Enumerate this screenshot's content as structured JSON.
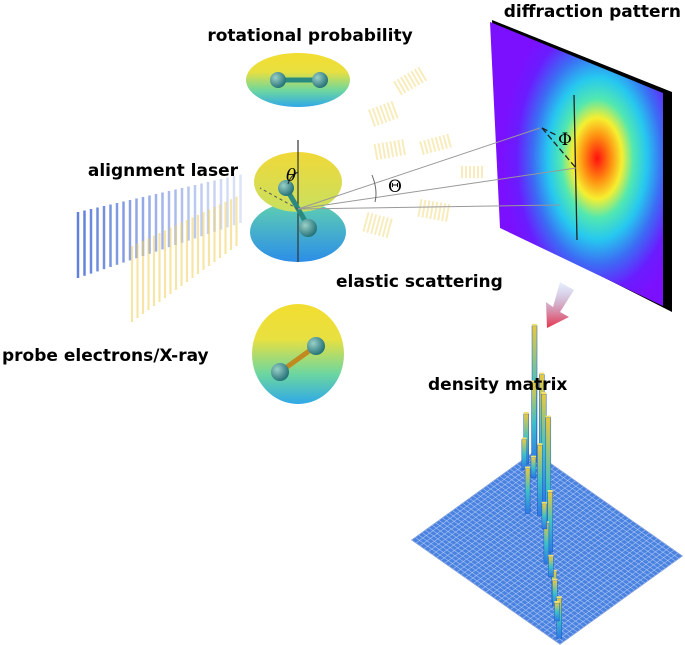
{
  "labels": {
    "rotational_probability": "rotational probability",
    "alignment_laser": "alignment laser",
    "probe": "probe electrons/X-ray",
    "diffraction_pattern": "diffraction pattern",
    "elastic_scattering": "elastic scattering",
    "density_matrix": "density matrix"
  },
  "symbols": {
    "theta_small": "θ",
    "theta_big": "Θ",
    "phi": "Φ"
  },
  "colors": {
    "screen_frame": "#000000",
    "screen_bg": "#7a10ff",
    "hot_spot": "#ff1010",
    "arrow": "#e8304a",
    "grid_floor": "#4a82e0"
  }
}
